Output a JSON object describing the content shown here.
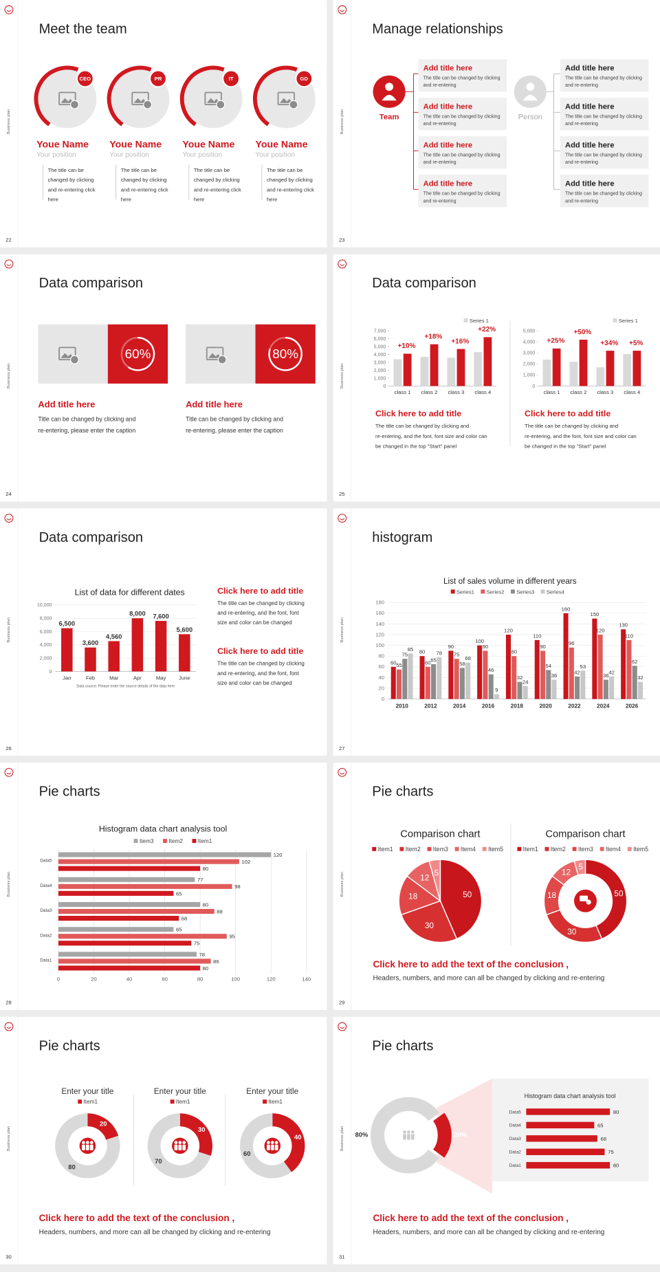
{
  "slides": [
    {
      "number": 22,
      "side_label": "Business plan",
      "title": "Meet the team",
      "members": [
        {
          "badge": "CEO",
          "name": "Youe Name",
          "position": "Your position",
          "text": "The title can be changed by clicking and re-entering click here"
        },
        {
          "badge": "PR",
          "name": "Youe Name",
          "position": "Your position",
          "text": "The title can be changed by clicking and re-entering click here"
        },
        {
          "badge": "IT",
          "name": "Youe Name",
          "position": "Your position",
          "text": "The title can be changed by clicking and re-entering click here"
        },
        {
          "badge": "GD",
          "name": "Youe Name",
          "position": "Your position",
          "text": "The title can be changed by clicking and re-entering click here"
        }
      ]
    },
    {
      "number": 23,
      "side_label": "Business plan",
      "title": "Manage relationships",
      "left": {
        "label": "Team",
        "items": [
          {
            "title": "Add title here",
            "text": "The title can be changed by clicking and re-entering"
          },
          {
            "title": "Add title here",
            "text": "The title can be changed by clicking and re-entering"
          },
          {
            "title": "Add title here",
            "text": "The title can be changed by clicking and re-entering"
          },
          {
            "title": "Add title here",
            "text": "The title can be changed by clicking and re-entering"
          }
        ]
      },
      "right": {
        "label": "Person",
        "items": [
          {
            "title": "Add title here",
            "text": "The title can be changed by clicking and re-entering"
          },
          {
            "title": "Add title here",
            "text": "The title can be changed by clicking and re-entering"
          },
          {
            "title": "Add title here",
            "text": "The title can be changed by clicking and re-entering"
          },
          {
            "title": "Add title here",
            "text": "The title can be changed by clicking and re-entering"
          }
        ]
      }
    },
    {
      "number": 24,
      "side_label": "Business plan",
      "title": "Data comparison",
      "cards": [
        {
          "value": 60,
          "value_label": "60%",
          "title": "Add title here",
          "text": "Title can be changed by clicking and re-entering, please enter the caption"
        },
        {
          "value": 80,
          "value_label": "80%",
          "title": "Add title here",
          "text": "Title can be changed by clicking and re-entering, please enter the caption"
        }
      ]
    },
    {
      "number": 25,
      "side_label": "Business plan",
      "title": "Data comparison",
      "charts": [
        {
          "type": "bar",
          "categories": [
            "class 1",
            "class 2",
            "class 3",
            "class 4"
          ],
          "series": [
            {
              "name": "Series 1",
              "color": "#d9d9d9",
              "values": [
                3400,
                3700,
                3600,
                4300
              ]
            },
            {
              "color": "#d0191f",
              "values": [
                4100,
                5300,
                4700,
                6200
              ]
            }
          ],
          "annotations": [
            "+10%",
            "+18%",
            "+16%",
            "+22%"
          ],
          "ylim": [
            0,
            7000
          ],
          "yticks": [
            0,
            {
              "value": 1000,
              "label": "1,000"
            },
            {
              "value": 2000,
              "label": "2,000"
            },
            {
              "value": 3000,
              "label": "3,000"
            },
            {
              "value": 4000,
              "label": "4,000"
            },
            {
              "value": 5000,
              "label": "5,000"
            },
            {
              "value": 6000,
              "label": "6,000"
            },
            {
              "value": 7000,
              "label": "7,000"
            }
          ],
          "caption_title": "Click here to add title",
          "caption": "The title can be changed by clicking and re-entering, and the font, font size and color can be changed in the top \"Start\" panel"
        },
        {
          "type": "bar",
          "categories": [
            "class 1",
            "class 2",
            "class 3",
            "class 4"
          ],
          "series": [
            {
              "name": "Series 1",
              "color": "#d9d9d9",
              "values": [
                2400,
                2200,
                1700,
                2900
              ]
            },
            {
              "color": "#d0191f",
              "values": [
                3400,
                4200,
                3200,
                3200
              ]
            }
          ],
          "annotations": [
            "+25%",
            "+50%",
            "+34%",
            "+5%"
          ],
          "ylim": [
            0,
            5000
          ],
          "yticks": [
            0,
            {
              "value": 1000,
              "label": "1,000"
            },
            {
              "value": 2000,
              "label": "2,000"
            },
            {
              "value": 3000,
              "label": "3,000"
            },
            {
              "value": 4000,
              "label": "4,000"
            },
            {
              "value": 5000,
              "label": "5,000"
            }
          ],
          "caption_title": "Click here to add title",
          "caption": "The title can be changed by clicking and re-entering, and the font, font size and color can be changed in the top \"Start\" panel"
        }
      ]
    },
    {
      "number": 26,
      "side_label": "Business plan",
      "title": "Data comparison",
      "chart": {
        "type": "bar",
        "title": "List of data for different dates",
        "categories": [
          "Jan",
          "Feb",
          "Mar",
          "Apr",
          "May",
          "June"
        ],
        "values": [
          6500,
          3600,
          4560,
          8000,
          7600,
          5600
        ],
        "value_labels": [
          "6,500",
          "3,600",
          "4,560",
          "8,000",
          "7,600",
          "5,600"
        ],
        "color": "#d0191f",
        "ylim": [
          0,
          10000
        ],
        "yticks": [
          0,
          {
            "value": 2000,
            "label": "2,000"
          },
          {
            "value": 4000,
            "label": "4,000"
          },
          {
            "value": 6000,
            "label": "6,000"
          },
          {
            "value": 8000,
            "label": "8,000"
          },
          {
            "value": 10000,
            "label": "10,000"
          }
        ],
        "grid": true,
        "note": "Data source: Please enter the source details of the data here"
      },
      "notes": [
        {
          "title": "Click here to add title",
          "text": "The title can be changed by clicking and re-entering, and the font, font size and color can be changed"
        },
        {
          "title": "Click here to add title",
          "text": "The title can be changed by clicking and re-entering, and the font, font size and color can be changed"
        }
      ]
    },
    {
      "number": 27,
      "side_label": "Business plan",
      "title": "histogram",
      "chart": {
        "type": "bar",
        "title": "List of sales volume in different years",
        "categories": [
          "2010",
          "2012",
          "2014",
          "2016",
          "2018",
          "2020",
          "2022",
          "2024",
          "2026"
        ],
        "series": [
          {
            "name": "Series1",
            "color": "#c8161d",
            "values": [
              60,
              80,
              90,
              100,
              120,
              110,
              160,
              150,
              130
            ]
          },
          {
            "name": "Series2",
            "color": "#e05a5a",
            "values": [
              55,
              60,
              75,
              90,
              80,
              90,
              96,
              120,
              110
            ]
          },
          {
            "name": "Series3",
            "color": "#8c8c8c",
            "values": [
              75,
              65,
              58,
              46,
              32,
              54,
              42,
              36,
              62
            ]
          },
          {
            "name": "Series4",
            "color": "#c8c8c8",
            "values": [
              85,
              78,
              68,
              9,
              24,
              36,
              53,
              42,
              32
            ]
          }
        ],
        "ylim": [
          0,
          180
        ],
        "yticks": [
          0,
          20,
          40,
          60,
          80,
          100,
          120,
          140,
          160,
          180
        ],
        "grid": true
      }
    },
    {
      "number": 28,
      "side_label": "Business plan",
      "title": "Pie charts",
      "chart": {
        "type": "barh",
        "title": "Histogram data chart analysis tool",
        "categories": [
          "Data1",
          "Data2",
          "Data3",
          "Data4",
          "Data5"
        ],
        "series": [
          {
            "name": "Item3",
            "color": "#a6a6a6",
            "values": [
              78,
              65,
              80,
              77,
              120
            ]
          },
          {
            "name": "Item2",
            "color": "#e05a5a",
            "values": [
              86,
              95,
              88,
              98,
              102
            ]
          },
          {
            "name": "Item1",
            "color": "#d0191f",
            "values": [
              80,
              75,
              68,
              65,
              80
            ]
          }
        ],
        "xlim": [
          0,
          140
        ],
        "xticks": [
          0,
          20,
          40,
          60,
          80,
          100,
          120,
          140
        ],
        "grid": true
      }
    },
    {
      "number": 29,
      "side_label": "Business plan",
      "title": "Pie charts",
      "charts": [
        {
          "type": "pie",
          "title": "Comparison chart",
          "categories": [
            "Item1",
            "Item2",
            "Item3",
            "Item4",
            "Item5"
          ],
          "values": [
            50,
            30,
            18,
            12,
            5
          ],
          "colors": [
            "#c8161d",
            "#d63031",
            "#e04848",
            "#e86464",
            "#f08a8a"
          ]
        },
        {
          "type": "donut",
          "title": "Comparison chart",
          "categories": [
            "Item1",
            "Item2",
            "Item3",
            "Item4",
            "Item5"
          ],
          "values": [
            50,
            30,
            18,
            12,
            5
          ],
          "colors": [
            "#c8161d",
            "#d63031",
            "#e04848",
            "#e86464",
            "#f08a8a"
          ]
        }
      ],
      "conclusion": "Click here to add the text of the conclusion ,",
      "text": "Headers, numbers, and more can all be changed by clicking and re-entering"
    },
    {
      "number": 30,
      "side_label": "Business plan",
      "title": "Pie charts",
      "charts": [
        {
          "type": "donut",
          "title": "Enter your title",
          "categories": [
            "Item1",
            null
          ],
          "values": [
            20,
            80
          ],
          "colors": [
            "#d0191f",
            "#d9d9d9"
          ]
        },
        {
          "type": "donut",
          "title": "Enter your title",
          "categories": [
            "Item1",
            null
          ],
          "values": [
            30,
            70
          ],
          "colors": [
            "#d0191f",
            "#d9d9d9"
          ]
        },
        {
          "type": "donut",
          "title": "Enter your title",
          "categories": [
            "Item1",
            null
          ],
          "values": [
            40,
            60
          ],
          "colors": [
            "#d0191f",
            "#d9d9d9"
          ]
        }
      ],
      "conclusion": "Click here to add the text of the conclusion ,",
      "text": "Headers, numbers, and more can all be changed by clicking and re-entering"
    },
    {
      "number": 31,
      "side_label": "Business plan",
      "title": "Pie charts",
      "donut": {
        "type": "donut",
        "values": [
          80,
          20
        ],
        "value_labels": [
          "80%",
          "20%"
        ],
        "colors": [
          "#d9d9d9",
          "#d0191f"
        ]
      },
      "chart": {
        "type": "barh",
        "title": "Histogram data chart analysis tool",
        "categories": [
          "Data1",
          "Data2",
          "Data3",
          "Data4",
          "Data5"
        ],
        "values": [
          80,
          75,
          68,
          65,
          80
        ],
        "color": "#d0191f"
      },
      "conclusion": "Click here to add the text of the conclusion ,",
      "text": "Headers, numbers, and more can all be changed by clicking and re-entering"
    }
  ]
}
